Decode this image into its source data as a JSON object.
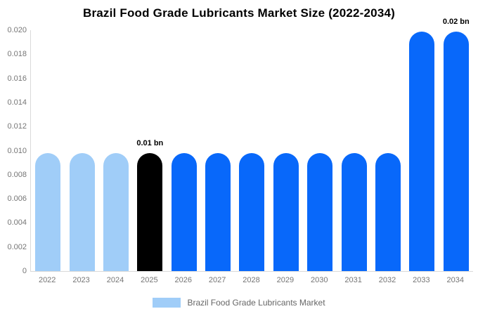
{
  "title": "Brazil Food Grade Lubricants Market Size (2022-2034)",
  "chart_data": {
    "type": "bar",
    "categories": [
      "2022",
      "2023",
      "2024",
      "2025",
      "2026",
      "2027",
      "2028",
      "2029",
      "2030",
      "2031",
      "2032",
      "2033",
      "2034"
    ],
    "values": [
      0.0098,
      0.0098,
      0.0098,
      0.0098,
      0.0098,
      0.0098,
      0.0098,
      0.0098,
      0.0098,
      0.0098,
      0.0098,
      0.0199,
      0.0199
    ],
    "bar_colors": [
      "#A0CDF8",
      "#A0CDF8",
      "#A0CDF8",
      "#000000",
      "#0868FA",
      "#0868FA",
      "#0868FA",
      "#0868FA",
      "#0868FA",
      "#0868FA",
      "#0868FA",
      "#0868FA",
      "#0868FA"
    ],
    "annotations": [
      {
        "category": "2025",
        "text": "0.01 bn"
      },
      {
        "category": "2034",
        "text": "0.02 bn"
      }
    ],
    "title": "Brazil Food Grade Lubricants Market Size (2022-2034)",
    "xlabel": "",
    "ylabel": "",
    "ylim": [
      0,
      0.02
    ],
    "yticks": [
      "0",
      "0.002",
      "0.004",
      "0.006",
      "0.008",
      "0.010",
      "0.012",
      "0.014",
      "0.016",
      "0.018",
      "0.020"
    ],
    "grid": false,
    "legend_position": "bottom",
    "legend": [
      {
        "label": "Brazil Food Grade Lubricants Market",
        "color": "#A0CDF8"
      }
    ]
  },
  "colors": {
    "light_blue": "#A0CDF8",
    "accent_blue": "#0868FA",
    "highlight_black": "#000000",
    "axis_line": "#D9D9D9",
    "tick_text": "#757575",
    "legend_text": "#666666",
    "title_text": "#000000",
    "background": "#FFFFFF"
  }
}
